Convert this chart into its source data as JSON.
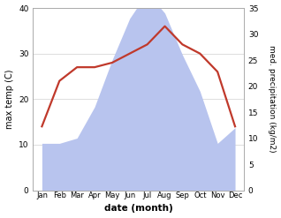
{
  "months": [
    "Jan",
    "Feb",
    "Mar",
    "Apr",
    "May",
    "Jun",
    "Jul",
    "Aug",
    "Sep",
    "Oct",
    "Nov",
    "Dec"
  ],
  "month_x": [
    1,
    2,
    3,
    4,
    5,
    6,
    7,
    8,
    9,
    10,
    11,
    12
  ],
  "temp": [
    14,
    24,
    27,
    27,
    28,
    30,
    32,
    36,
    32,
    30,
    26,
    14
  ],
  "precip": [
    9,
    9,
    10,
    16,
    25,
    33,
    38,
    34,
    26,
    19,
    9,
    12
  ],
  "temp_ylim": [
    0,
    40
  ],
  "precip_ylim": [
    0,
    35
  ],
  "precip_color_fill": "#b8c4ee",
  "temp_color": "#c0392b",
  "xlabel": "date (month)",
  "ylabel_left": "max temp (C)",
  "ylabel_right": "med. precipitation (kg/m2)",
  "bg_color": "#ffffff",
  "grid_color": "#d0d0d0",
  "temp_lw": 1.6
}
